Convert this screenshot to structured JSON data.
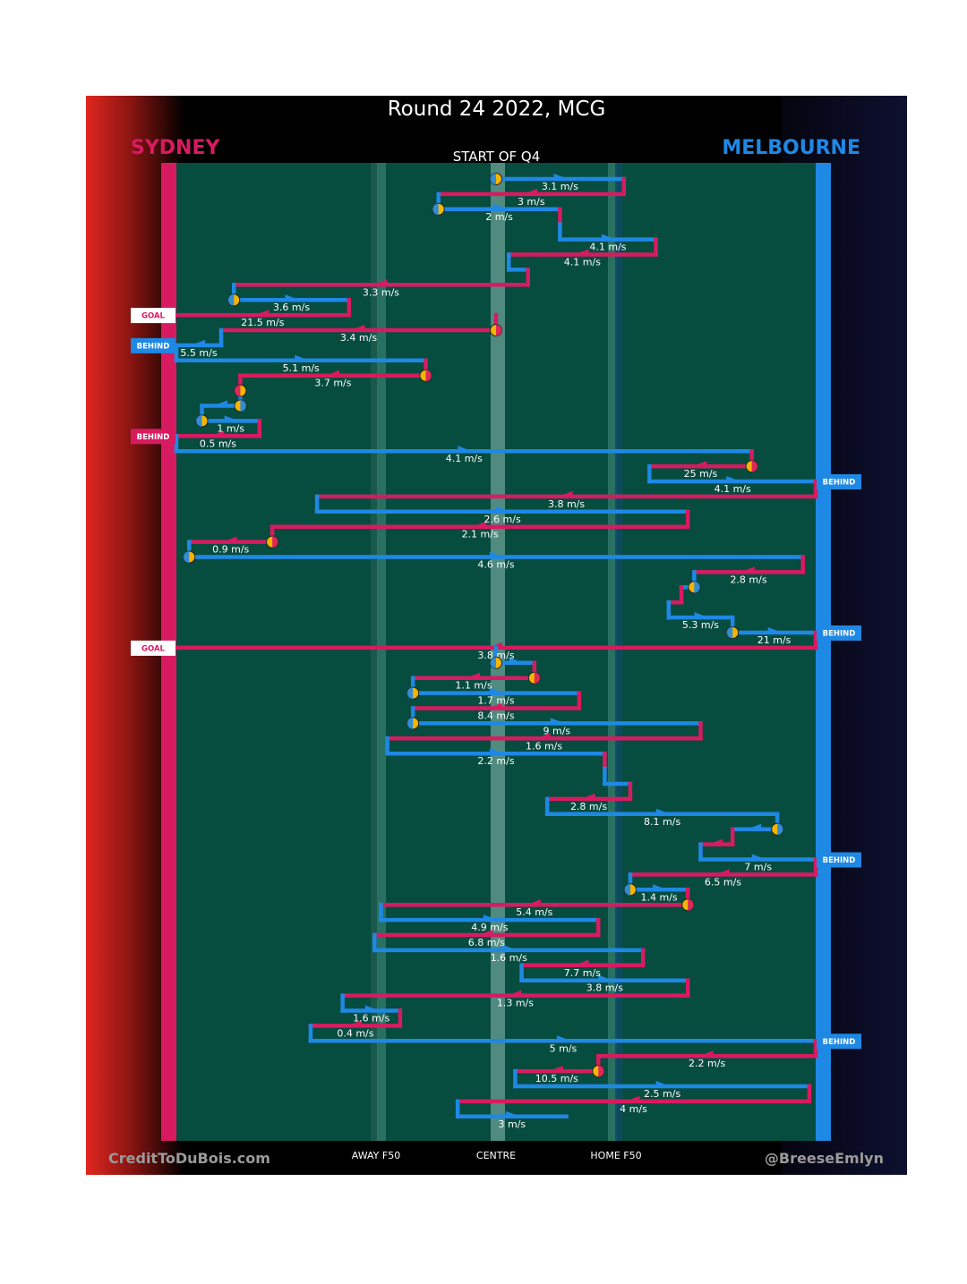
{
  "header": {
    "title": "Round 24 2022, MCG",
    "home_team": "SYDNEY",
    "away_team": "MELBOURNE",
    "subtitle": "START OF Q4"
  },
  "axis": {
    "labels": [
      "AWAY F50",
      "CENTRE",
      "HOME F50"
    ]
  },
  "footer": {
    "left": "CreditToDuBois.com",
    "right": "@BreeseEmlyn"
  },
  "colors": {
    "sydney": "#d81b60",
    "melbourne": "#1e88e5",
    "turnover_marker": "#f5b400",
    "field": "#064c3f"
  },
  "chart_data": {
    "type": "line",
    "description_axis": "x = ball position across the ground (0 = Sydney end, 100 = Melbourne end, 50 = centre); rows = successive possession chains from the start of Q4",
    "x_range": [
      0,
      100
    ],
    "segments": [
      {
        "team": "melbourne",
        "x0": 50,
        "x1": 70,
        "speed": "3.1 m/s",
        "start_turnover": true
      },
      {
        "team": "sydney",
        "x0": 70,
        "x1": 41,
        "speed": "3 m/s"
      },
      {
        "team": "melbourne",
        "x0": 41,
        "x1": 60,
        "speed": "2 m/s",
        "start_turnover": true
      },
      {
        "team": "sydney",
        "x0": 60,
        "x1": 60,
        "speed": ""
      },
      {
        "team": "melbourne",
        "x0": 60,
        "x1": 75,
        "speed": "4.1 m/s"
      },
      {
        "team": "sydney",
        "x0": 75,
        "x1": 52,
        "speed": "4.1 m/s"
      },
      {
        "team": "melbourne",
        "x0": 52,
        "x1": 55,
        "speed": ""
      },
      {
        "team": "sydney",
        "x0": 55,
        "x1": 9,
        "speed": "3.3 m/s"
      },
      {
        "team": "melbourne",
        "x0": 9,
        "x1": 27,
        "speed": "3.6 m/s",
        "start_turnover": true
      },
      {
        "team": "sydney",
        "x0": 27,
        "x1": 0,
        "speed": "21.5 m/s",
        "result": "GOAL"
      },
      {
        "team": "sydney",
        "x0": 50,
        "x1": 7,
        "speed": "3.4 m/s",
        "start_turnover": true
      },
      {
        "team": "melbourne",
        "x0": 7,
        "x1": 0,
        "speed": "5.5 m/s",
        "result": "BEHIND"
      },
      {
        "team": "melbourne",
        "x0": 0,
        "x1": 39,
        "speed": "5.1 m/s"
      },
      {
        "team": "sydney",
        "x0": 39,
        "x1": 10,
        "speed": "3.7 m/s",
        "start_turnover": true
      },
      {
        "team": "sydney",
        "x0": 10,
        "x1": 10,
        "speed": "",
        "start_turnover": true
      },
      {
        "team": "melbourne",
        "x0": 10,
        "x1": 4,
        "speed": "",
        "start_turnover": true
      },
      {
        "team": "melbourne",
        "x0": 4,
        "x1": 13,
        "speed": "1 m/s",
        "start_turnover": true
      },
      {
        "team": "sydney",
        "x0": 13,
        "x1": 0,
        "speed": "0.5 m/s",
        "result": "BEHIND"
      },
      {
        "team": "melbourne",
        "x0": 0,
        "x1": 90,
        "speed": "4.1 m/s"
      },
      {
        "team": "sydney",
        "x0": 90,
        "x1": 74,
        "speed": "25 m/s",
        "start_turnover": true
      },
      {
        "team": "melbourne",
        "x0": 74,
        "x1": 100,
        "speed": "4.1 m/s",
        "result": "BEHIND"
      },
      {
        "team": "sydney",
        "x0": 100,
        "x1": 22,
        "speed": "3.8 m/s"
      },
      {
        "team": "melbourne",
        "x0": 22,
        "x1": 80,
        "speed": "2.6 m/s"
      },
      {
        "team": "sydney",
        "x0": 80,
        "x1": 15,
        "speed": "2.1 m/s"
      },
      {
        "team": "sydney",
        "x0": 15,
        "x1": 2,
        "speed": "0.9 m/s",
        "start_turnover": true
      },
      {
        "team": "melbourne",
        "x0": 2,
        "x1": 98,
        "speed": "4.6 m/s",
        "start_turnover": true
      },
      {
        "team": "sydney",
        "x0": 98,
        "x1": 81,
        "speed": "2.8 m/s"
      },
      {
        "team": "melbourne",
        "x0": 81,
        "x1": 79,
        "speed": "",
        "start_turnover": true
      },
      {
        "team": "sydney",
        "x0": 79,
        "x1": 77,
        "speed": ""
      },
      {
        "team": "melbourne",
        "x0": 77,
        "x1": 87,
        "speed": "5.3 m/s"
      },
      {
        "team": "melbourne",
        "x0": 87,
        "x1": 100,
        "speed": "21 m/s",
        "result": "BEHIND",
        "start_turnover": true
      },
      {
        "team": "sydney",
        "x0": 100,
        "x1": 0,
        "speed": "3.8 m/s",
        "result": "GOAL"
      },
      {
        "team": "melbourne",
        "x0": 50,
        "x1": 56,
        "speed": "",
        "start_turnover": true
      },
      {
        "team": "sydney",
        "x0": 56,
        "x1": 37,
        "speed": "1.1 m/s",
        "start_turnover": true
      },
      {
        "team": "melbourne",
        "x0": 37,
        "x1": 63,
        "speed": "1.7 m/s",
        "start_turnover": true
      },
      {
        "team": "sydney",
        "x0": 63,
        "x1": 37,
        "speed": "8.4 m/s"
      },
      {
        "team": "melbourne",
        "x0": 37,
        "x1": 82,
        "speed": "9 m/s",
        "start_turnover": true
      },
      {
        "team": "sydney",
        "x0": 82,
        "x1": 33,
        "speed": "1.6 m/s"
      },
      {
        "team": "melbourne",
        "x0": 33,
        "x1": 67,
        "speed": "2.2 m/s"
      },
      {
        "team": "sydney",
        "x0": 67,
        "x1": 67,
        "speed": ""
      },
      {
        "team": "melbourne",
        "x0": 67,
        "x1": 71,
        "speed": ""
      },
      {
        "team": "sydney",
        "x0": 71,
        "x1": 58,
        "speed": "2.8 m/s"
      },
      {
        "team": "melbourne",
        "x0": 58,
        "x1": 94,
        "speed": "8.1 m/s"
      },
      {
        "team": "melbourne",
        "x0": 94,
        "x1": 87,
        "speed": "",
        "start_turnover": true
      },
      {
        "team": "sydney",
        "x0": 87,
        "x1": 82,
        "speed": ""
      },
      {
        "team": "melbourne",
        "x0": 82,
        "x1": 100,
        "speed": "7 m/s",
        "result": "BEHIND"
      },
      {
        "team": "sydney",
        "x0": 100,
        "x1": 71,
        "speed": "6.5 m/s"
      },
      {
        "team": "melbourne",
        "x0": 71,
        "x1": 80,
        "speed": "1.4 m/s",
        "start_turnover": true
      },
      {
        "team": "sydney",
        "x0": 80,
        "x1": 32,
        "speed": "5.4 m/s",
        "start_turnover": true
      },
      {
        "team": "melbourne",
        "x0": 32,
        "x1": 66,
        "speed": "4.9 m/s"
      },
      {
        "team": "sydney",
        "x0": 66,
        "x1": 31,
        "speed": "6.8 m/s"
      },
      {
        "team": "melbourne",
        "x0": 31,
        "x1": 73,
        "speed": "1.6 m/s"
      },
      {
        "team": "sydney",
        "x0": 73,
        "x1": 54,
        "speed": "7.7 m/s"
      },
      {
        "team": "melbourne",
        "x0": 54,
        "x1": 80,
        "speed": "3.8 m/s"
      },
      {
        "team": "sydney",
        "x0": 80,
        "x1": 26,
        "speed": "1.3 m/s"
      },
      {
        "team": "melbourne",
        "x0": 26,
        "x1": 35,
        "speed": "1.6 m/s"
      },
      {
        "team": "sydney",
        "x0": 35,
        "x1": 21,
        "speed": "0.4 m/s"
      },
      {
        "team": "melbourne",
        "x0": 21,
        "x1": 100,
        "speed": "5 m/s",
        "result": "BEHIND"
      },
      {
        "team": "sydney",
        "x0": 100,
        "x1": 66,
        "speed": "2.2 m/s"
      },
      {
        "team": "sydney",
        "x0": 66,
        "x1": 53,
        "speed": "10.5 m/s",
        "start_turnover": true
      },
      {
        "team": "melbourne",
        "x0": 53,
        "x1": 99,
        "speed": "2.5 m/s"
      },
      {
        "team": "sydney",
        "x0": 99,
        "x1": 44,
        "speed": "4 m/s"
      },
      {
        "team": "melbourne",
        "x0": 44,
        "x1": 61,
        "speed": "3 m/s"
      }
    ]
  }
}
